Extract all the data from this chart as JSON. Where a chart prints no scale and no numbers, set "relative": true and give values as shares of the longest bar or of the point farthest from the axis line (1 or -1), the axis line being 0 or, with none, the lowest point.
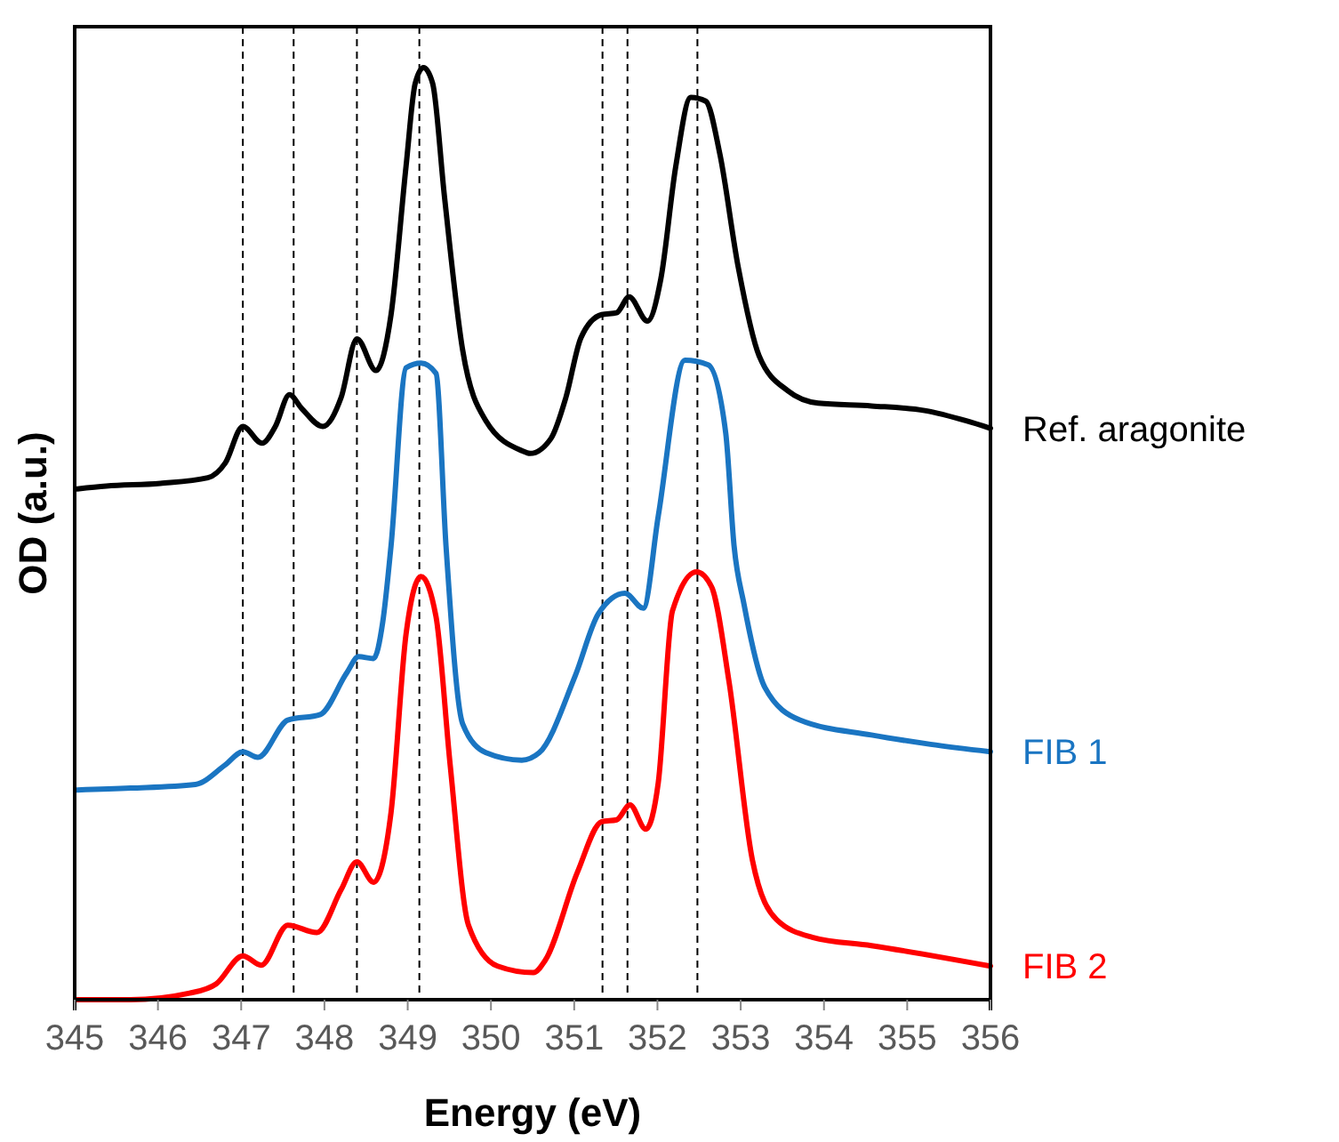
{
  "chart_data": {
    "type": "line",
    "xlabel": "Energy (eV)",
    "ylabel": "OD (a.u.)",
    "relative": true,
    "legend": false,
    "grid": false,
    "marker": "none",
    "line_style": "solid",
    "xlim": [
      345,
      356
    ],
    "xticks": [
      345,
      346,
      347,
      348,
      349,
      350,
      351,
      352,
      353,
      354,
      355,
      356
    ],
    "ref_lines": [
      {
        "axis": "x",
        "value": 347.02,
        "color": "#000000",
        "line_style": "dashed"
      },
      {
        "axis": "x",
        "value": 347.63,
        "color": "#000000",
        "line_style": "dashed"
      },
      {
        "axis": "x",
        "value": 348.39,
        "color": "#000000",
        "line_style": "dashed"
      },
      {
        "axis": "x",
        "value": 349.14,
        "color": "#000000",
        "line_style": "dashed"
      },
      {
        "axis": "x",
        "value": 351.34,
        "color": "#000000",
        "line_style": "dashed"
      },
      {
        "axis": "x",
        "value": 351.64,
        "color": "#000000",
        "line_style": "dashed"
      },
      {
        "axis": "x",
        "value": 352.48,
        "color": "#000000",
        "line_style": "dashed"
      }
    ],
    "series": [
      {
        "name": "Ref. aragonite",
        "color": "#000000",
        "x": [
          345.03,
          345.38,
          346.03,
          346.6,
          346.81,
          347.02,
          347.25,
          347.41,
          347.58,
          347.73,
          347.98,
          348.2,
          348.39,
          348.62,
          348.8,
          348.98,
          349.09,
          349.19,
          349.3,
          349.44,
          349.66,
          349.94,
          350.37,
          350.47,
          350.72,
          350.9,
          351.08,
          351.33,
          351.51,
          351.66,
          351.88,
          352.04,
          352.22,
          352.4,
          352.58,
          352.75,
          352.97,
          353.22,
          353.57,
          353.93,
          354.57,
          355.21,
          355.71,
          356
        ],
        "values": [
          0.548,
          0.551,
          0.554,
          0.56,
          0.576,
          0.615,
          0.597,
          0.615,
          0.649,
          0.634,
          0.615,
          0.646,
          0.709,
          0.675,
          0.735,
          0.894,
          0.983,
          1,
          0.983,
          0.863,
          0.697,
          0.621,
          0.589,
          0.586,
          0.602,
          0.646,
          0.71,
          0.735,
          0.737,
          0.754,
          0.728,
          0.773,
          0.894,
          0.968,
          0.964,
          0.907,
          0.786,
          0.691,
          0.653,
          0.64,
          0.637,
          0.632,
          0.621,
          0.613
        ]
      },
      {
        "name": "FIB 1",
        "color": "#1a75c2",
        "x": [
          345.03,
          345.67,
          346.45,
          346.81,
          347.02,
          347.2,
          347.56,
          347.95,
          348.27,
          348.41,
          348.59,
          348.7,
          348.8,
          348.98,
          349.16,
          349.34,
          349.46,
          349.66,
          349.94,
          350.37,
          350.58,
          351.01,
          351.29,
          351.61,
          351.83,
          352.01,
          352.33,
          352.61,
          352.82,
          352.92,
          353.04,
          353.29,
          353.71,
          354.57,
          355.28,
          356
        ],
        "values": [
          0.225,
          0.227,
          0.231,
          0.252,
          0.266,
          0.26,
          0.3,
          0.306,
          0.351,
          0.368,
          0.366,
          0.405,
          0.487,
          0.678,
          0.683,
          0.672,
          0.487,
          0.296,
          0.265,
          0.257,
          0.265,
          0.347,
          0.414,
          0.436,
          0.42,
          0.519,
          0.686,
          0.681,
          0.608,
          0.487,
          0.424,
          0.335,
          0.3,
          0.284,
          0.274,
          0.266
        ]
      },
      {
        "name": "FIB 2",
        "color": "#ff0000",
        "x": [
          345.03,
          345.67,
          346.38,
          346.7,
          347.02,
          347.24,
          347.56,
          347.91,
          348.2,
          348.39,
          348.59,
          348.8,
          348.98,
          349.16,
          349.34,
          349.51,
          349.73,
          350.08,
          350.51,
          350.65,
          351.04,
          351.33,
          351.51,
          351.67,
          351.86,
          352.01,
          352.18,
          352.47,
          352.65,
          352.86,
          353.14,
          353.43,
          353.86,
          354.57,
          356
        ],
        "values": [
          0,
          0,
          0.007,
          0.017,
          0.047,
          0.037,
          0.08,
          0.072,
          0.118,
          0.148,
          0.126,
          0.201,
          0.392,
          0.454,
          0.411,
          0.252,
          0.08,
          0.036,
          0.029,
          0.042,
          0.137,
          0.191,
          0.193,
          0.209,
          0.183,
          0.233,
          0.417,
          0.459,
          0.443,
          0.341,
          0.15,
          0.086,
          0.067,
          0.058,
          0.036
        ]
      }
    ]
  }
}
